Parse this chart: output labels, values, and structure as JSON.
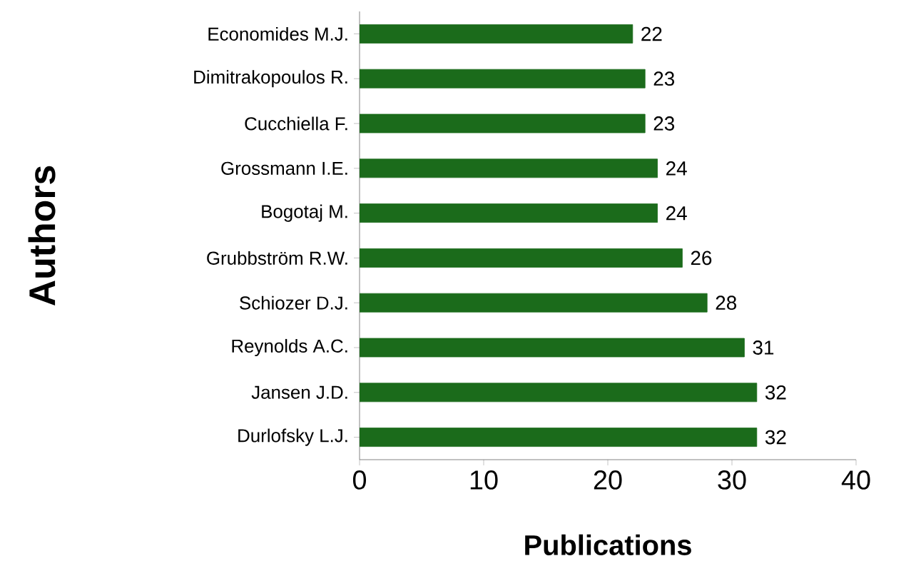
{
  "chart_data": {
    "type": "bar",
    "orientation": "horizontal",
    "xlabel": "Publications",
    "ylabel": "Authors",
    "categories": [
      "Economides M.J.",
      "Dimitrakopoulos R.",
      "Cucchiella F.",
      "Grossmann I.E.",
      "Bogotaj M.",
      "Grubbström R.W.",
      "Schiozer D.J.",
      "Reynolds A.C.",
      "Jansen J.D.",
      "Durlofsky L.J."
    ],
    "values": [
      22,
      23,
      23,
      24,
      24,
      26,
      28,
      31,
      32,
      32
    ],
    "color": "#1b6b1b",
    "xlim": [
      0,
      40
    ],
    "xticks": [
      0,
      10,
      20,
      30,
      40
    ],
    "data_labels": true
  }
}
